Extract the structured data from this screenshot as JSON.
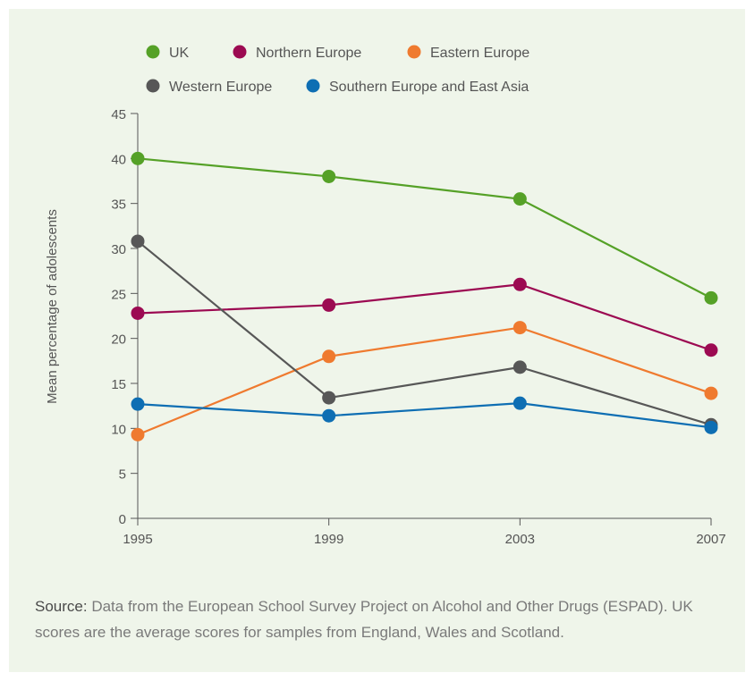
{
  "chart_data": {
    "type": "line",
    "x": [
      "1995",
      "1999",
      "2003",
      "2007"
    ],
    "ylabel": "Mean percentage of adolescents",
    "ylim": [
      0,
      45
    ],
    "yticks": [
      0,
      5,
      10,
      15,
      20,
      25,
      30,
      35,
      40,
      45
    ],
    "legend_position": "top",
    "grid": false,
    "series": [
      {
        "name": "UK",
        "color": "#55a127",
        "values": [
          40,
          38,
          35.5,
          24.5
        ]
      },
      {
        "name": "Northern Europe",
        "color": "#9c0a52",
        "values": [
          22.8,
          23.7,
          26,
          18.7
        ]
      },
      {
        "name": "Eastern Europe",
        "color": "#ef7a2f",
        "values": [
          9.3,
          18,
          21.2,
          13.9
        ]
      },
      {
        "name": "Western Europe",
        "color": "#575757",
        "values": [
          30.8,
          13.4,
          16.8,
          10.4
        ]
      },
      {
        "name": "Southern Europe and East Asia",
        "color": "#0e6eb3",
        "values": [
          12.7,
          11.4,
          12.8,
          10.1
        ]
      }
    ]
  },
  "source": {
    "lead": "Source:",
    "text": " Data from the European School Survey Project on Alcohol and Other Drugs (ESPAD). UK scores are the average scores for samples from England, Wales and Scotland."
  }
}
